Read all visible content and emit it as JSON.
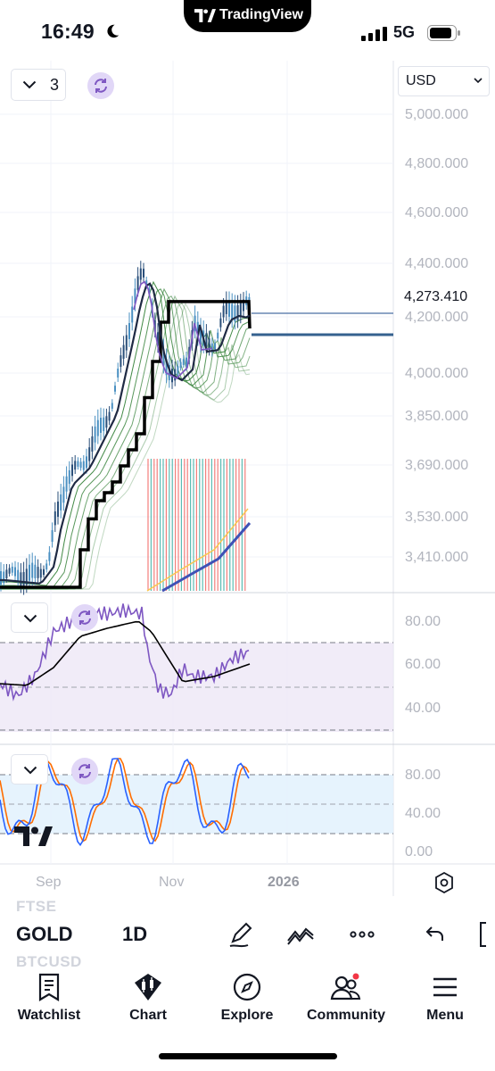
{
  "status_bar": {
    "time": "16:49",
    "app_pill_brand": "TradingView",
    "network": "5G",
    "icons": [
      "moon-icon",
      "signal-icon",
      "battery-icon"
    ]
  },
  "chart": {
    "currency": "USD",
    "legend_count": "3",
    "last_price": "4,273.410",
    "price_axis": [
      "5,000.000",
      "4,800.000",
      "4,600.000",
      "4,400.000",
      "4,200.000",
      "4,000.000",
      "3,850.000",
      "3,690.000",
      "3,530.000",
      "3,410.000"
    ],
    "rsi_axis": [
      "80.00",
      "60.00",
      "40.00"
    ],
    "stoch_axis": [
      "80.00",
      "40.00",
      "0.00"
    ],
    "time_axis": [
      "Sep",
      "Nov",
      "2026"
    ],
    "colors": {
      "price_line": "#1f2a44",
      "ema_green": "#2e7d32",
      "step_line": "#000000",
      "rsi_line": "#7e57c2",
      "rsi_band": "#ede7f6",
      "stoch_blue": "#2962ff",
      "stoch_orange": "#ff6d00",
      "stoch_band": "#e3f2fd",
      "volume_red": "#ef5350",
      "volume_teal": "#26a69a"
    }
  },
  "toolbar": {
    "symbol": "GOLD",
    "interval": "1D",
    "ghost_above": "FTSE",
    "ghost_below": "BTCUSD",
    "icons": [
      "pen-icon",
      "indicators-icon",
      "more-icon",
      "undo-icon"
    ]
  },
  "nav": [
    {
      "label": "Watchlist",
      "icon": "watchlist-icon"
    },
    {
      "label": "Chart",
      "icon": "chart-icon"
    },
    {
      "label": "Explore",
      "icon": "compass-icon"
    },
    {
      "label": "Community",
      "icon": "community-icon"
    },
    {
      "label": "Menu",
      "icon": "menu-icon"
    }
  ]
}
